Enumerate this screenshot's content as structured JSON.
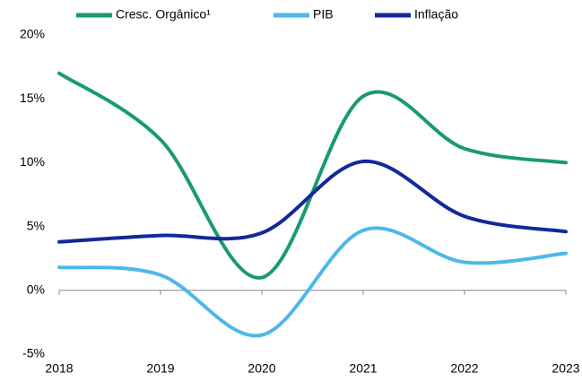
{
  "chart_data": {
    "type": "line",
    "x": [
      2018,
      2019,
      2020,
      2021,
      2022,
      2023
    ],
    "series": [
      {
        "name": "Cresc. Orgânico¹",
        "color": "#1a9a72",
        "values": [
          17.0,
          11.8,
          1.0,
          15.2,
          11.1,
          10.0
        ]
      },
      {
        "name": "PIB",
        "color": "#4db8e8",
        "values": [
          1.8,
          1.2,
          -3.5,
          4.7,
          2.2,
          2.9
        ]
      },
      {
        "name": "Inflação",
        "color": "#13289a",
        "values": [
          3.8,
          4.3,
          4.5,
          10.1,
          5.8,
          4.6
        ]
      }
    ],
    "xlim": [
      2018,
      2023
    ],
    "xticks": [
      2018,
      2019,
      2020,
      2021,
      2022,
      2023
    ],
    "ylim": [
      -5,
      20
    ],
    "yticks": [
      {
        "value": -5,
        "label": "-5%"
      },
      {
        "value": 0,
        "label": "0%"
      },
      {
        "value": 5,
        "label": "5%"
      },
      {
        "value": 10,
        "label": "10%"
      },
      {
        "value": 15,
        "label": "15%"
      },
      {
        "value": 20,
        "label": "20%"
      }
    ],
    "legend": "top"
  }
}
